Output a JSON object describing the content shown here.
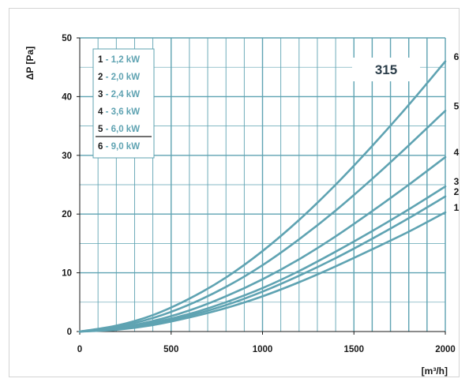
{
  "chart_data": {
    "type": "line",
    "title": "",
    "xlabel": "[m³/h]",
    "ylabel": "ΔP [Pa]",
    "xlim": [
      0,
      2000
    ],
    "ylim": [
      0,
      50
    ],
    "xticks": [
      "0",
      "500",
      "1000",
      "1500",
      "2000"
    ],
    "yticks": [
      "0",
      "10",
      "20",
      "30",
      "40",
      "50"
    ],
    "grid": true,
    "legend_position": "top-left",
    "size_label": "315",
    "legend": [
      {
        "num": "1",
        "text": "- 1,2 kW"
      },
      {
        "num": "2",
        "text": "- 2,0 kW"
      },
      {
        "num": "3",
        "text": "- 2,4 kW"
      },
      {
        "num": "4",
        "text": "- 3,6 kW"
      },
      {
        "num": "5",
        "text": "- 6,0 kW"
      },
      {
        "num": "6",
        "text": "- 9,0 kW"
      }
    ],
    "x": [
      0,
      200,
      400,
      600,
      800,
      1000,
      1200,
      1400,
      1600,
      1800,
      2000
    ],
    "series": [
      {
        "name": "1",
        "values": [
          0,
          0.3,
          1.1,
          2.4,
          4.0,
          6.0,
          8.4,
          11.1,
          14.0,
          17.0,
          20.3
        ]
      },
      {
        "name": "2",
        "values": [
          0,
          0.4,
          1.3,
          2.7,
          4.5,
          6.8,
          9.5,
          12.5,
          15.8,
          19.3,
          23.0
        ]
      },
      {
        "name": "3",
        "values": [
          0,
          0.5,
          1.5,
          3.0,
          5.0,
          7.4,
          10.3,
          13.6,
          17.1,
          20.8,
          24.7
        ]
      },
      {
        "name": "4",
        "values": [
          0,
          0.6,
          1.8,
          3.6,
          6.0,
          8.9,
          12.3,
          16.2,
          20.5,
          25.0,
          29.7
        ]
      },
      {
        "name": "5",
        "values": [
          0,
          0.8,
          2.3,
          4.6,
          7.6,
          11.3,
          15.7,
          20.6,
          26.0,
          31.7,
          37.6
        ]
      },
      {
        "name": "6",
        "values": [
          0,
          1.0,
          2.8,
          5.6,
          9.2,
          13.7,
          19.0,
          25.0,
          31.6,
          38.6,
          46.0
        ]
      }
    ],
    "colors": {
      "curve": "#5fa3b2",
      "grid": "#5fa3b2",
      "legend_text": "#5fa3b2",
      "legend_border": "#5fa3b2",
      "axis": "#1a1a1a"
    }
  }
}
